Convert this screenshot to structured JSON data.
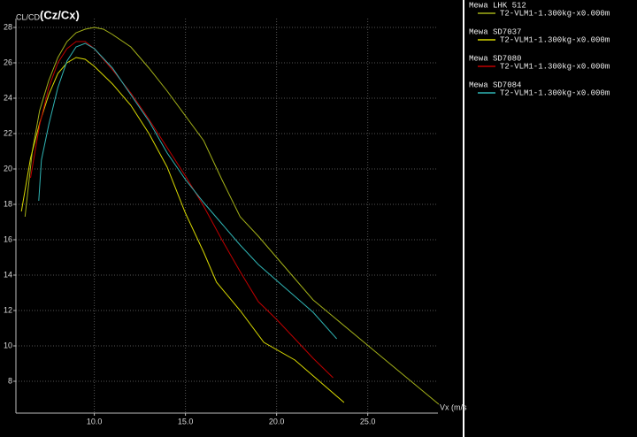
{
  "chart_data": {
    "type": "line",
    "ylabel": "CL/CD",
    "subtitle": "(Cz/Cx)",
    "xlabel": "Vx (m/s",
    "xlim": [
      5.7,
      28.85
    ],
    "ylim": [
      6.2,
      28.5
    ],
    "xticks": [
      {
        "value": 10,
        "label": "10.0"
      },
      {
        "value": 15,
        "label": "15.0"
      },
      {
        "value": 20,
        "label": "20.0"
      },
      {
        "value": 25,
        "label": "25.0"
      }
    ],
    "yticks": [
      8,
      10,
      12,
      14,
      16,
      18,
      20,
      22,
      24,
      26,
      28
    ],
    "grid": true,
    "legend": "right",
    "series": [
      {
        "name": "Mewa LHK 512",
        "label": "T2-VLM1-1.300kg-x0.000m",
        "color": "#a3b019",
        "x": [
          6.2,
          6.6,
          7,
          7.5,
          8,
          8.5,
          9,
          9.5,
          10,
          10.5,
          11,
          12,
          13,
          14,
          15,
          16,
          17,
          18,
          19,
          20,
          22,
          25.5,
          28.9
        ],
        "values": [
          17.3,
          21,
          23.3,
          25,
          26.3,
          27.2,
          27.7,
          27.9,
          28,
          27.9,
          27.6,
          26.9,
          25.7,
          24.4,
          23.0,
          21.6,
          19.4,
          17.3,
          16.2,
          15.0,
          12.6,
          9.6,
          6.7
        ]
      },
      {
        "name": "Mewa SD7037",
        "label": "T2-VLM1-1.300kg-x0.000m",
        "color": "#d8d800",
        "x": [
          6.0,
          6.5,
          7,
          7.5,
          8,
          8.5,
          9,
          9.5,
          10,
          11,
          12,
          13,
          14,
          15,
          16,
          16.7,
          18,
          19.3,
          21,
          23.7
        ],
        "values": [
          17.6,
          20.6,
          22.6,
          24.2,
          25.4,
          26.0,
          26.3,
          26.2,
          25.8,
          24.8,
          23.6,
          22.0,
          20.1,
          17.5,
          15.3,
          13.6,
          12.0,
          10.2,
          9.2,
          6.8
        ]
      },
      {
        "name": "Mewa SD7080",
        "label": "T2-VLM1-1.300kg-x0.000m",
        "color": "#c00000",
        "x": [
          6.5,
          7,
          7.5,
          8,
          8.5,
          9,
          9.5,
          10,
          11,
          12,
          13,
          14,
          15,
          16,
          17,
          18,
          19,
          20,
          21,
          22,
          23.1
        ],
        "values": [
          19.5,
          22.5,
          24.6,
          26.0,
          26.8,
          27.2,
          27.2,
          26.8,
          25.6,
          24.3,
          22.8,
          21.2,
          19.6,
          17.9,
          16.0,
          14.2,
          12.5,
          11.5,
          10.4,
          9.3,
          8.2
        ]
      },
      {
        "name": "Mewa SD7084",
        "label": "T2-VLM1-1.300kg-x0.000m",
        "color": "#2fb4b4",
        "x": [
          6.95,
          7.1,
          7.5,
          8,
          8.5,
          9,
          9.5,
          10,
          11,
          12,
          13,
          14,
          15,
          16,
          17,
          18,
          19,
          20,
          21,
          22,
          23.3
        ],
        "values": [
          18.2,
          20.5,
          22.5,
          24.6,
          26.1,
          26.9,
          27.1,
          26.8,
          25.7,
          24.2,
          22.7,
          20.9,
          19.4,
          18.1,
          16.9,
          15.7,
          14.6,
          13.7,
          12.8,
          11.9,
          10.4
        ]
      }
    ]
  }
}
